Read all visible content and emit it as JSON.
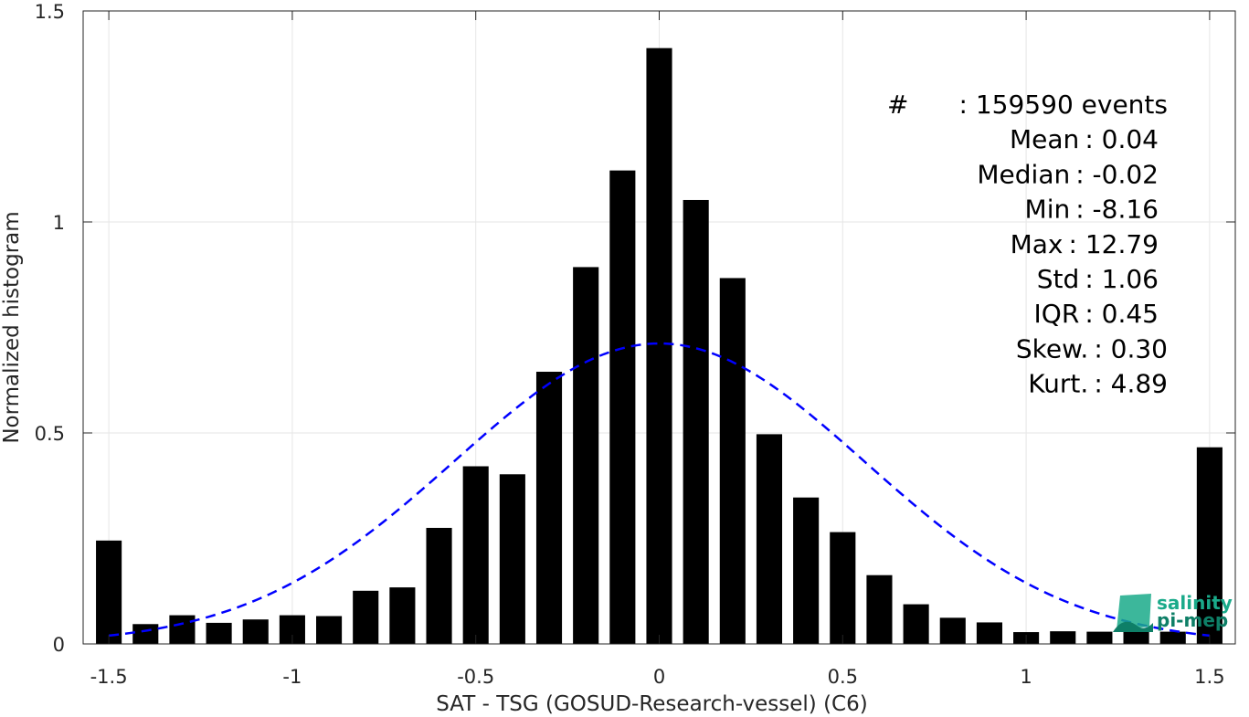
{
  "chart_data": {
    "type": "bar",
    "xlabel": "SAT - TSG (GOSUD-Research-vessel) (C6)",
    "ylabel": "Normalized histogram",
    "xlim": [
      -1.57,
      1.57
    ],
    "ylim": [
      0,
      1.5
    ],
    "xticks": [
      -1.5,
      -1,
      -0.5,
      0,
      0.5,
      1,
      1.5
    ],
    "xtick_labels": [
      "-1.5",
      "-1",
      "-0.5",
      "0",
      "0.5",
      "1",
      "1.5"
    ],
    "yticks": [
      0,
      0.5,
      1,
      1.5
    ],
    "ytick_labels": [
      "0",
      "0.5",
      "1",
      "1.5"
    ],
    "grid": true,
    "bar_width": 0.07,
    "x": [
      -1.5,
      -1.4,
      -1.3,
      -1.2,
      -1.1,
      -1.0,
      -0.9,
      -0.8,
      -0.7,
      -0.6,
      -0.5,
      -0.4,
      -0.3,
      -0.2,
      -0.1,
      0.0,
      0.1,
      0.2,
      0.3,
      0.4,
      0.5,
      0.6,
      0.7,
      0.8,
      0.9,
      1.0,
      1.1,
      1.2,
      1.3,
      1.4,
      1.5
    ],
    "values": [
      0.245,
      0.047,
      0.068,
      0.05,
      0.058,
      0.068,
      0.066,
      0.126,
      0.134,
      0.275,
      0.421,
      0.402,
      0.645,
      0.893,
      1.122,
      1.412,
      1.052,
      0.867,
      0.497,
      0.347,
      0.265,
      0.163,
      0.094,
      0.062,
      0.051,
      0.028,
      0.03,
      0.029,
      0.033,
      0.029,
      0.466
    ],
    "series": [
      {
        "type": "bar",
        "color": "#000000"
      },
      {
        "type": "line",
        "style": "dashed",
        "color": "#0000ff",
        "distribution": "normal",
        "mean": 0.0,
        "std": 0.56,
        "peak": 0.712,
        "x_range": [
          -1.5,
          1.5
        ]
      }
    ],
    "annotations": [
      {
        "label": "#",
        "value": ": 159590 events"
      },
      {
        "label": "Mean",
        "value": ": 0.04"
      },
      {
        "label": "Median",
        "value": ": -0.02"
      },
      {
        "label": "Min",
        "value": ": -8.16"
      },
      {
        "label": "Max",
        "value": ": 12.79"
      },
      {
        "label": "Std",
        "value": ": 1.06"
      },
      {
        "label": "IQR",
        "value": ": 0.45"
      },
      {
        "label": "Skew.",
        "value": ": 0.30"
      },
      {
        "label": "Kurt.",
        "value": ": 4.89"
      }
    ]
  },
  "logo": {
    "line1": "salinity",
    "line2": "pi-mep",
    "color": "#1aaa8a"
  }
}
